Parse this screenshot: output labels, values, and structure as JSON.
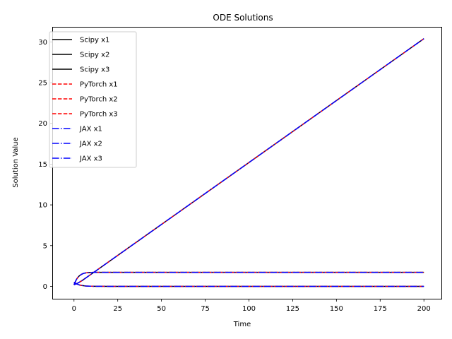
{
  "chart_data": {
    "type": "line",
    "title": "ODE Solutions",
    "xlabel": "Time",
    "ylabel": "Solution Value",
    "xlim": [
      -10,
      210
    ],
    "ylim": [
      -1.52,
      31.85
    ],
    "xticks": [
      0,
      25,
      50,
      75,
      100,
      125,
      150,
      175,
      200
    ],
    "yticks": [
      0,
      5,
      10,
      15,
      20,
      25,
      30
    ],
    "grid": false,
    "legend_position": "top-left",
    "series": [
      {
        "name": "Scipy x1",
        "color": "#000000",
        "dash": "solid",
        "curve": "x1"
      },
      {
        "name": "Scipy x2",
        "color": "#000000",
        "dash": "solid",
        "curve": "x2"
      },
      {
        "name": "Scipy x3",
        "color": "#000000",
        "dash": "solid",
        "curve": "x3"
      },
      {
        "name": "PyTorch x1",
        "color": "#ff0000",
        "dash": "dashed",
        "curve": "x1"
      },
      {
        "name": "PyTorch x2",
        "color": "#ff0000",
        "dash": "dashed",
        "curve": "x2"
      },
      {
        "name": "PyTorch x3",
        "color": "#ff0000",
        "dash": "dashed",
        "curve": "x3"
      },
      {
        "name": "JAX x1",
        "color": "#0000ff",
        "dash": "dashdot",
        "curve": "x1"
      },
      {
        "name": "JAX x2",
        "color": "#0000ff",
        "dash": "dashdot",
        "curve": "x2"
      },
      {
        "name": "JAX x3",
        "color": "#0000ff",
        "dash": "dashdot",
        "curve": "x3"
      }
    ],
    "curves": {
      "x1": {
        "x": [
          0,
          0.5,
          1,
          1.5,
          2,
          2.5,
          3,
          4,
          5,
          6,
          7,
          8,
          10,
          12,
          15,
          20,
          30,
          50,
          100,
          150,
          200
        ],
        "y": [
          0.5,
          0.42,
          0.36,
          0.3,
          0.26,
          0.22,
          0.18,
          0.13,
          0.09,
          0.06,
          0.04,
          0.03,
          0.015,
          0.008,
          0.004,
          0.002,
          0.001,
          0.001,
          0.001,
          0.001,
          0.001
        ]
      },
      "x2": {
        "x": [
          0,
          0.5,
          1,
          1.5,
          2,
          2.5,
          3,
          4,
          5,
          6,
          7,
          8,
          10,
          12,
          15,
          20,
          30,
          50,
          100,
          150,
          200
        ],
        "y": [
          0.2,
          0.45,
          0.68,
          0.88,
          1.04,
          1.17,
          1.28,
          1.44,
          1.55,
          1.62,
          1.66,
          1.69,
          1.71,
          1.72,
          1.72,
          1.72,
          1.72,
          1.72,
          1.72,
          1.72,
          1.72
        ]
      },
      "x3": {
        "x": [
          0,
          1,
          2,
          3,
          4,
          5,
          6,
          8,
          10,
          20,
          50,
          100,
          150,
          200
        ],
        "y": [
          0.2,
          0.28,
          0.38,
          0.5,
          0.63,
          0.77,
          0.92,
          1.22,
          1.52,
          3.04,
          7.6,
          15.2,
          22.8,
          30.4
        ]
      }
    }
  }
}
